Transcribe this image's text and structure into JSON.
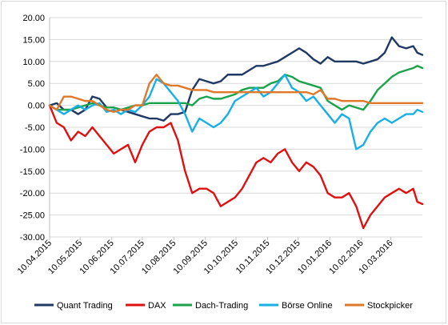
{
  "chart_data": {
    "type": "line",
    "title": "",
    "xlabel": "",
    "ylabel": "",
    "ylim": [
      -30,
      20
    ],
    "yticks": [
      "20.00",
      "15.00",
      "10.00",
      "5.00",
      "0.00",
      "-5.00",
      "-10.00",
      "-15.00",
      "-20.00",
      "-25.00",
      "-30.00"
    ],
    "xticks": [
      "10.04.2015",
      "10.05.2015",
      "10.06.2015",
      "10.07.2015",
      "10.08.2015",
      "10.09.2015",
      "10.10.2015",
      "10.11.2015",
      "10.12.2015",
      "10.01.2016",
      "10.02.2016",
      "10.03.2016"
    ],
    "xlim": [
      "2015-04-10",
      "2016-04-10"
    ],
    "grid": "horizontal",
    "legend_position": "bottom",
    "series": [
      {
        "name": "Quant Trading",
        "color": "#1f3864",
        "points": [
          [
            "2015-04-10",
            0
          ],
          [
            "2015-04-17",
            0.5
          ],
          [
            "2015-04-24",
            -1
          ],
          [
            "2015-05-01",
            -1
          ],
          [
            "2015-05-08",
            -2
          ],
          [
            "2015-05-15",
            -1
          ],
          [
            "2015-05-22",
            2
          ],
          [
            "2015-05-29",
            1.5
          ],
          [
            "2015-06-05",
            -0.5
          ],
          [
            "2015-06-12",
            -0.5
          ],
          [
            "2015-06-19",
            -1
          ],
          [
            "2015-06-26",
            -1.5
          ],
          [
            "2015-07-03",
            -2
          ],
          [
            "2015-07-10",
            -2.5
          ],
          [
            "2015-07-17",
            -3
          ],
          [
            "2015-07-24",
            -3
          ],
          [
            "2015-07-31",
            -3.5
          ],
          [
            "2015-08-07",
            -2
          ],
          [
            "2015-08-14",
            -2
          ],
          [
            "2015-08-21",
            -1.5
          ],
          [
            "2015-08-28",
            3.5
          ],
          [
            "2015-09-04",
            6
          ],
          [
            "2015-09-11",
            5.5
          ],
          [
            "2015-09-18",
            5
          ],
          [
            "2015-09-25",
            5.5
          ],
          [
            "2015-10-02",
            7
          ],
          [
            "2015-10-09",
            7
          ],
          [
            "2015-10-16",
            7
          ],
          [
            "2015-10-23",
            8
          ],
          [
            "2015-10-30",
            9
          ],
          [
            "2015-11-06",
            9
          ],
          [
            "2015-11-13",
            9.5
          ],
          [
            "2015-11-20",
            10
          ],
          [
            "2015-11-27",
            11
          ],
          [
            "2015-12-04",
            12
          ],
          [
            "2015-12-11",
            13
          ],
          [
            "2015-12-18",
            12
          ],
          [
            "2015-12-25",
            10.5
          ],
          [
            "2016-01-01",
            9.5
          ],
          [
            "2016-01-08",
            11
          ],
          [
            "2016-01-15",
            10
          ],
          [
            "2016-01-22",
            10
          ],
          [
            "2016-01-29",
            10
          ],
          [
            "2016-02-05",
            10
          ],
          [
            "2016-02-12",
            9.5
          ],
          [
            "2016-02-19",
            10
          ],
          [
            "2016-02-26",
            10.5
          ],
          [
            "2016-03-04",
            12
          ],
          [
            "2016-03-11",
            15.5
          ],
          [
            "2016-03-18",
            13.5
          ],
          [
            "2016-03-25",
            13
          ],
          [
            "2016-04-01",
            13.5
          ],
          [
            "2016-04-05",
            12
          ],
          [
            "2016-04-10",
            11.5
          ]
        ]
      },
      {
        "name": "DAX",
        "color": "#e01010",
        "points": [
          [
            "2015-04-10",
            0
          ],
          [
            "2015-04-17",
            -4
          ],
          [
            "2015-04-24",
            -5
          ],
          [
            "2015-05-01",
            -8
          ],
          [
            "2015-05-08",
            -6
          ],
          [
            "2015-05-15",
            -7
          ],
          [
            "2015-05-22",
            -5
          ],
          [
            "2015-05-29",
            -7
          ],
          [
            "2015-06-05",
            -9
          ],
          [
            "2015-06-12",
            -11
          ],
          [
            "2015-06-19",
            -10
          ],
          [
            "2015-06-26",
            -9
          ],
          [
            "2015-07-03",
            -13
          ],
          [
            "2015-07-10",
            -9
          ],
          [
            "2015-07-17",
            -6
          ],
          [
            "2015-07-24",
            -5
          ],
          [
            "2015-07-31",
            -5
          ],
          [
            "2015-08-07",
            -4
          ],
          [
            "2015-08-14",
            -8
          ],
          [
            "2015-08-21",
            -15
          ],
          [
            "2015-08-28",
            -20
          ],
          [
            "2015-09-04",
            -19
          ],
          [
            "2015-09-11",
            -19
          ],
          [
            "2015-09-18",
            -20
          ],
          [
            "2015-09-25",
            -23
          ],
          [
            "2015-10-02",
            -22
          ],
          [
            "2015-10-09",
            -21
          ],
          [
            "2015-10-16",
            -19
          ],
          [
            "2015-10-23",
            -16
          ],
          [
            "2015-10-30",
            -13
          ],
          [
            "2015-11-06",
            -12
          ],
          [
            "2015-11-13",
            -13
          ],
          [
            "2015-11-20",
            -11
          ],
          [
            "2015-11-27",
            -10
          ],
          [
            "2015-12-04",
            -13
          ],
          [
            "2015-12-11",
            -15
          ],
          [
            "2015-12-18",
            -13
          ],
          [
            "2015-12-25",
            -14
          ],
          [
            "2016-01-01",
            -16
          ],
          [
            "2016-01-08",
            -20
          ],
          [
            "2016-01-15",
            -21
          ],
          [
            "2016-01-22",
            -21
          ],
          [
            "2016-01-29",
            -20
          ],
          [
            "2016-02-05",
            -23
          ],
          [
            "2016-02-12",
            -28
          ],
          [
            "2016-02-19",
            -25
          ],
          [
            "2016-02-26",
            -23
          ],
          [
            "2016-03-04",
            -21
          ],
          [
            "2016-03-11",
            -20
          ],
          [
            "2016-03-18",
            -19
          ],
          [
            "2016-03-25",
            -20
          ],
          [
            "2016-04-01",
            -19
          ],
          [
            "2016-04-05",
            -22
          ],
          [
            "2016-04-10",
            -22.5
          ]
        ]
      },
      {
        "name": "Dach-Trading",
        "color": "#1aa34a",
        "points": [
          [
            "2015-04-10",
            0
          ],
          [
            "2015-04-17",
            -1
          ],
          [
            "2015-04-24",
            -1
          ],
          [
            "2015-05-01",
            -1
          ],
          [
            "2015-05-08",
            -0.5
          ],
          [
            "2015-05-15",
            0
          ],
          [
            "2015-05-22",
            0.5
          ],
          [
            "2015-05-29",
            0
          ],
          [
            "2015-06-05",
            -0.5
          ],
          [
            "2015-06-12",
            -0.5
          ],
          [
            "2015-06-19",
            -1
          ],
          [
            "2015-06-26",
            -0.5
          ],
          [
            "2015-07-03",
            0
          ],
          [
            "2015-07-10",
            0
          ],
          [
            "2015-07-17",
            0.5
          ],
          [
            "2015-07-24",
            0.5
          ],
          [
            "2015-07-31",
            0.5
          ],
          [
            "2015-08-07",
            0.5
          ],
          [
            "2015-08-14",
            0.5
          ],
          [
            "2015-08-21",
            0.5
          ],
          [
            "2015-08-28",
            0
          ],
          [
            "2015-09-04",
            1.5
          ],
          [
            "2015-09-11",
            2
          ],
          [
            "2015-09-18",
            1.5
          ],
          [
            "2015-09-25",
            1.5
          ],
          [
            "2015-10-02",
            2
          ],
          [
            "2015-10-09",
            2.5
          ],
          [
            "2015-10-16",
            3.5
          ],
          [
            "2015-10-23",
            4
          ],
          [
            "2015-10-30",
            4
          ],
          [
            "2015-11-06",
            4
          ],
          [
            "2015-11-13",
            5
          ],
          [
            "2015-11-20",
            5.5
          ],
          [
            "2015-11-27",
            7
          ],
          [
            "2015-12-04",
            6.5
          ],
          [
            "2015-12-11",
            5.5
          ],
          [
            "2015-12-18",
            5
          ],
          [
            "2015-12-25",
            4.5
          ],
          [
            "2016-01-01",
            4
          ],
          [
            "2016-01-08",
            1
          ],
          [
            "2016-01-15",
            0
          ],
          [
            "2016-01-22",
            -1
          ],
          [
            "2016-01-29",
            0
          ],
          [
            "2016-02-05",
            -0.5
          ],
          [
            "2016-02-12",
            -1
          ],
          [
            "2016-02-19",
            1
          ],
          [
            "2016-02-26",
            3.5
          ],
          [
            "2016-03-04",
            5
          ],
          [
            "2016-03-11",
            6.5
          ],
          [
            "2016-03-18",
            7.5
          ],
          [
            "2016-03-25",
            8
          ],
          [
            "2016-04-01",
            8.5
          ],
          [
            "2016-04-05",
            9
          ],
          [
            "2016-04-10",
            8.5
          ]
        ]
      },
      {
        "name": "Börse Online",
        "color": "#17b0e6",
        "points": [
          [
            "2015-04-10",
            0
          ],
          [
            "2015-04-17",
            -1
          ],
          [
            "2015-04-24",
            -2
          ],
          [
            "2015-05-01",
            -1
          ],
          [
            "2015-05-08",
            0
          ],
          [
            "2015-05-15",
            -1
          ],
          [
            "2015-05-22",
            0
          ],
          [
            "2015-05-29",
            0.5
          ],
          [
            "2015-06-05",
            -1.5
          ],
          [
            "2015-06-12",
            -1
          ],
          [
            "2015-06-19",
            -2
          ],
          [
            "2015-06-26",
            -1
          ],
          [
            "2015-07-03",
            -1.5
          ],
          [
            "2015-07-10",
            0
          ],
          [
            "2015-07-17",
            2
          ],
          [
            "2015-07-24",
            6
          ],
          [
            "2015-07-31",
            5
          ],
          [
            "2015-08-07",
            3
          ],
          [
            "2015-08-14",
            1
          ],
          [
            "2015-08-21",
            -2
          ],
          [
            "2015-08-28",
            -6
          ],
          [
            "2015-09-04",
            -3
          ],
          [
            "2015-09-11",
            -4
          ],
          [
            "2015-09-18",
            -5
          ],
          [
            "2015-09-25",
            -4
          ],
          [
            "2015-10-02",
            -2
          ],
          [
            "2015-10-09",
            1
          ],
          [
            "2015-10-16",
            2
          ],
          [
            "2015-10-23",
            3
          ],
          [
            "2015-10-30",
            4
          ],
          [
            "2015-11-06",
            2
          ],
          [
            "2015-11-13",
            3
          ],
          [
            "2015-11-20",
            5
          ],
          [
            "2015-11-27",
            7
          ],
          [
            "2015-12-04",
            4
          ],
          [
            "2015-12-11",
            3
          ],
          [
            "2015-12-18",
            1
          ],
          [
            "2015-12-25",
            2
          ],
          [
            "2016-01-01",
            0
          ],
          [
            "2016-01-08",
            -2
          ],
          [
            "2016-01-15",
            -4
          ],
          [
            "2016-01-22",
            -2
          ],
          [
            "2016-01-29",
            -3
          ],
          [
            "2016-02-05",
            -10
          ],
          [
            "2016-02-12",
            -9
          ],
          [
            "2016-02-19",
            -6
          ],
          [
            "2016-02-26",
            -4
          ],
          [
            "2016-03-04",
            -3
          ],
          [
            "2016-03-11",
            -4
          ],
          [
            "2016-03-18",
            -3
          ],
          [
            "2016-03-25",
            -2
          ],
          [
            "2016-04-01",
            -2
          ],
          [
            "2016-04-05",
            -1
          ],
          [
            "2016-04-10",
            -1.5
          ]
        ]
      },
      {
        "name": "Stockpicker",
        "color": "#e0782a",
        "points": [
          [
            "2015-04-10",
            0
          ],
          [
            "2015-04-17",
            -1
          ],
          [
            "2015-04-24",
            2
          ],
          [
            "2015-05-01",
            2
          ],
          [
            "2015-05-08",
            1.5
          ],
          [
            "2015-05-15",
            1
          ],
          [
            "2015-05-22",
            1
          ],
          [
            "2015-05-29",
            0
          ],
          [
            "2015-06-05",
            -1
          ],
          [
            "2015-06-12",
            -1.5
          ],
          [
            "2015-06-19",
            -1
          ],
          [
            "2015-06-26",
            -1
          ],
          [
            "2015-07-03",
            0
          ],
          [
            "2015-07-10",
            0
          ],
          [
            "2015-07-17",
            5
          ],
          [
            "2015-07-24",
            7
          ],
          [
            "2015-07-31",
            5
          ],
          [
            "2015-08-07",
            4.5
          ],
          [
            "2015-08-14",
            4.5
          ],
          [
            "2015-08-21",
            4
          ],
          [
            "2015-08-28",
            3.5
          ],
          [
            "2015-09-04",
            3.5
          ],
          [
            "2015-09-11",
            3.5
          ],
          [
            "2015-09-18",
            3
          ],
          [
            "2015-09-25",
            3
          ],
          [
            "2015-10-02",
            3
          ],
          [
            "2015-10-09",
            3
          ],
          [
            "2015-10-16",
            3
          ],
          [
            "2015-10-23",
            3
          ],
          [
            "2015-10-30",
            3
          ],
          [
            "2015-11-06",
            3
          ],
          [
            "2015-11-13",
            3
          ],
          [
            "2015-11-20",
            3
          ],
          [
            "2015-11-27",
            3
          ],
          [
            "2015-12-04",
            3
          ],
          [
            "2015-12-11",
            3
          ],
          [
            "2015-12-18",
            3
          ],
          [
            "2015-12-25",
            2.5
          ],
          [
            "2016-01-01",
            3.5
          ],
          [
            "2016-01-08",
            1.5
          ],
          [
            "2016-01-15",
            1.5
          ],
          [
            "2016-01-22",
            1
          ],
          [
            "2016-01-29",
            1
          ],
          [
            "2016-02-05",
            1
          ],
          [
            "2016-02-12",
            1
          ],
          [
            "2016-02-19",
            0.5
          ],
          [
            "2016-02-26",
            0.5
          ],
          [
            "2016-03-04",
            0.5
          ],
          [
            "2016-03-11",
            0.5
          ],
          [
            "2016-03-18",
            0.5
          ],
          [
            "2016-03-25",
            0.5
          ],
          [
            "2016-04-01",
            0.5
          ],
          [
            "2016-04-05",
            0.5
          ],
          [
            "2016-04-10",
            0.5
          ]
        ]
      }
    ]
  }
}
